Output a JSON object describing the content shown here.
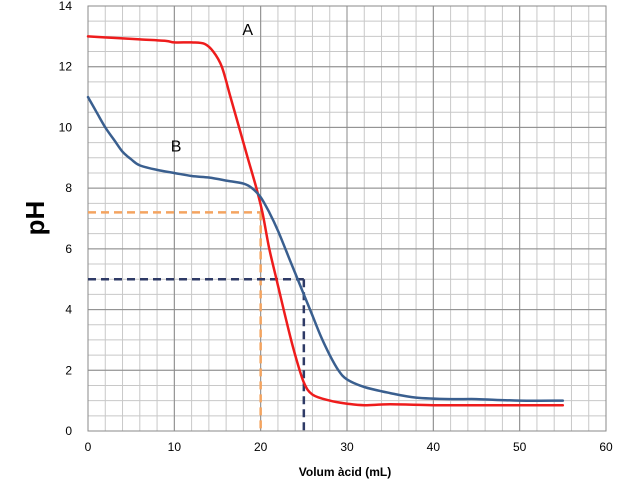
{
  "chart_data": {
    "type": "line",
    "xlabel": "Volum àcid (mL)",
    "ylabel": "pH",
    "xlim": [
      0,
      60
    ],
    "ylim": [
      0,
      14
    ],
    "x_ticks": [
      0,
      10,
      20,
      30,
      40,
      50,
      60
    ],
    "y_ticks": [
      0,
      2,
      4,
      6,
      8,
      10,
      12,
      14
    ],
    "x_minor_step": 2,
    "y_minor_step": 0.5,
    "grid": true,
    "series": [
      {
        "name": "A",
        "color": "#ee1c1c",
        "points": [
          [
            0,
            13.0
          ],
          [
            3,
            12.95
          ],
          [
            6,
            12.9
          ],
          [
            9,
            12.85
          ],
          [
            10,
            12.8
          ],
          [
            12,
            12.8
          ],
          [
            13.5,
            12.75
          ],
          [
            14.5,
            12.5
          ],
          [
            15.5,
            12.0
          ],
          [
            16.5,
            11.0
          ],
          [
            17.5,
            10.0
          ],
          [
            18.5,
            9.0
          ],
          [
            19.5,
            8.0
          ],
          [
            20.2,
            7.2
          ],
          [
            21,
            6.0
          ],
          [
            22,
            4.8
          ],
          [
            23,
            3.6
          ],
          [
            24,
            2.5
          ],
          [
            25,
            1.6
          ],
          [
            26,
            1.2
          ],
          [
            28,
            1.0
          ],
          [
            30,
            0.9
          ],
          [
            32,
            0.85
          ],
          [
            35,
            0.88
          ],
          [
            40,
            0.85
          ],
          [
            45,
            0.85
          ],
          [
            50,
            0.85
          ],
          [
            55,
            0.85
          ]
        ]
      },
      {
        "name": "B",
        "color": "#3a5f8f",
        "points": [
          [
            0,
            11.0
          ],
          [
            1,
            10.5
          ],
          [
            2,
            10.0
          ],
          [
            3,
            9.6
          ],
          [
            4,
            9.2
          ],
          [
            5,
            8.95
          ],
          [
            6,
            8.75
          ],
          [
            8,
            8.6
          ],
          [
            10,
            8.5
          ],
          [
            12,
            8.4
          ],
          [
            14,
            8.35
          ],
          [
            16,
            8.25
          ],
          [
            18,
            8.15
          ],
          [
            19,
            8.0
          ],
          [
            20,
            7.7
          ],
          [
            21,
            7.2
          ],
          [
            22,
            6.6
          ],
          [
            23,
            5.9
          ],
          [
            24,
            5.2
          ],
          [
            25,
            4.5
          ],
          [
            26,
            3.8
          ],
          [
            27,
            3.1
          ],
          [
            28,
            2.5
          ],
          [
            29,
            2.0
          ],
          [
            30,
            1.7
          ],
          [
            32,
            1.45
          ],
          [
            35,
            1.25
          ],
          [
            38,
            1.1
          ],
          [
            42,
            1.05
          ],
          [
            45,
            1.05
          ],
          [
            50,
            1.0
          ],
          [
            55,
            1.0
          ]
        ]
      }
    ],
    "reference_lines": [
      {
        "color": "#f4a460",
        "x": 20,
        "y": 7.2
      },
      {
        "color": "#2e3a66",
        "x": 25,
        "y": 5.0
      }
    ],
    "annotations": [
      {
        "text": "A",
        "x": 18.5,
        "y": 13.05
      },
      {
        "text": "B",
        "x": 10.2,
        "y": 9.2
      }
    ]
  }
}
